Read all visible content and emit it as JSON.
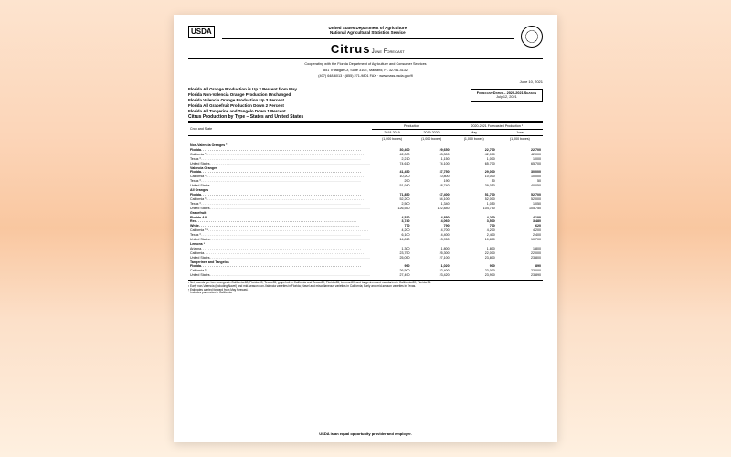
{
  "header": {
    "dept1": "United States Department of Agriculture",
    "dept2": "National Agricultural Statistics Service",
    "title": "Citrus",
    "subtitle": "June Forecast",
    "usda": "USDA",
    "seal": "AGRICULTURE COUNTS"
  },
  "coop": {
    "l1": "Cooperating with the Florida Department of Agriculture and Consumer Services",
    "l2": "851 Trafalgar Ct, Suite 310E, Maitland, FL 32751-4132",
    "l3": "(407) 648-6013 · (855) 271-9801 FAX · www.nass.usda.gov/fl"
  },
  "date": "June 10, 2021",
  "bullets": [
    "Florida All Orange Production is Up 2 Percent from May",
    "Florida Non-Valencia Orange Production Unchanged",
    "Florida Valencia Orange Production Up 3 Percent",
    "Florida All Grapefruit Production Down 2 Percent",
    "Florida All Tangerine and Tangelo Down 1 Percent"
  ],
  "fbox": {
    "t": "Forecast Dates – 2020-2021 Season",
    "d": "July 12, 2021"
  },
  "sect": "Citrus Production by Type – States and United States",
  "th": {
    "cs": "Crop and State",
    "prod": "Production",
    "fore": "2020-2021 Forecasted Production ¹",
    "y1": "2018-2019",
    "y2": "2019-2020",
    "m": "May",
    "j": "June",
    "u": "(1,000 boxes)"
  },
  "rows": [
    {
      "g": 1,
      "cs": "Non-Valencia Oranges ²"
    },
    {
      "b": 1,
      "cs": "Florida",
      "v": [
        "30,400",
        "29,650",
        "22,700",
        "22,700"
      ]
    },
    {
      "cs": "California ³",
      "v": [
        "42,000",
        "43,300",
        "42,000",
        "42,000"
      ]
    },
    {
      "cs": "Texas ³",
      "v": [
        "2,210",
        "1,150",
        "1,000",
        "1,000"
      ]
    },
    {
      "cs": "United States",
      "v": [
        "74,610",
        "74,100",
        "65,700",
        "65,700"
      ]
    },
    {
      "g": 1,
      "cs": "Valencia Oranges"
    },
    {
      "b": 1,
      "cs": "Florida",
      "v": [
        "41,450",
        "37,750",
        "29,000",
        "30,000"
      ]
    },
    {
      "cs": "California ³",
      "v": [
        "10,200",
        "10,800",
        "10,000",
        "10,000"
      ]
    },
    {
      "cs": "Texas ³",
      "v": [
        "290",
        "190",
        "50",
        "50"
      ]
    },
    {
      "cs": "United States",
      "v": [
        "51,940",
        "48,740",
        "39,050",
        "40,050"
      ]
    },
    {
      "g": 1,
      "cs": "All Oranges"
    },
    {
      "b": 1,
      "cs": "Florida",
      "v": [
        "71,850",
        "67,400",
        "51,700",
        "52,700"
      ]
    },
    {
      "cs": "California ³",
      "v": [
        "52,200",
        "54,100",
        "52,000",
        "52,000"
      ]
    },
    {
      "cs": "Texas ³",
      "v": [
        "2,500",
        "1,340",
        "1,050",
        "1,050"
      ]
    },
    {
      "cs": "United States",
      "v": [
        "126,550",
        "122,840",
        "104,750",
        "105,750"
      ]
    },
    {
      "g": 1,
      "cs": "Grapefruit"
    },
    {
      "b": 1,
      "cs": "Florida-All",
      "v": [
        "4,510",
        "4,850",
        "4,200",
        "4,100"
      ]
    },
    {
      "b": 1,
      "cs": "  Red",
      "v": [
        "3,740",
        "4,060",
        "3,500",
        "3,480"
      ]
    },
    {
      "b": 1,
      "cs": "  White",
      "v": [
        "770",
        "790",
        "700",
        "620"
      ]
    },
    {
      "cs": "California ³ ⁴",
      "v": [
        "4,200",
        "4,700",
        "4,200",
        "4,200"
      ]
    },
    {
      "cs": "Texas ³",
      "v": [
        "6,100",
        "4,400",
        "2,400",
        "2,400"
      ]
    },
    {
      "cs": "United States",
      "v": [
        "14,810",
        "13,950",
        "10,800",
        "10,700"
      ]
    },
    {
      "g": 1,
      "cs": "Lemons ³"
    },
    {
      "cs": "Arizona",
      "v": [
        "1,300",
        "1,800",
        "1,800",
        "1,800"
      ]
    },
    {
      "cs": "California",
      "v": [
        "23,750",
        "25,300",
        "22,000",
        "22,000"
      ]
    },
    {
      "cs": "United States",
      "v": [
        "25,050",
        "27,100",
        "23,800",
        "23,800"
      ]
    },
    {
      "g": 1,
      "cs": "Tangerines and Tangelos"
    },
    {
      "b": 1,
      "cs": "Florida",
      "v": [
        "990",
        "1,020",
        "900",
        "890"
      ]
    },
    {
      "cs": "California ³",
      "v": [
        "26,500",
        "22,400",
        "23,000",
        "23,000"
      ]
    },
    {
      "cs": "United States",
      "v": [
        "27,490",
        "23,420",
        "23,900",
        "23,890"
      ]
    }
  ],
  "notes": [
    "¹ Net pounds per box: oranges in California-80, Florida-90, Texas-85; grapefruit in California and Texas-80, Florida-85; lemons-80; and tangerines and mandarins in California-80, Florida-95.",
    "² Early non-Valencia (including Navel) and mid-season non-Valencia varieties in Florida; Navel and miscellaneous varieties in California; Early and mid-season varieties in Texas.",
    "³ Estimates carried forward from May forecast.",
    "⁴ Includes pummelos in California."
  ],
  "footer": "USDA is an equal opportunity provider and employer."
}
